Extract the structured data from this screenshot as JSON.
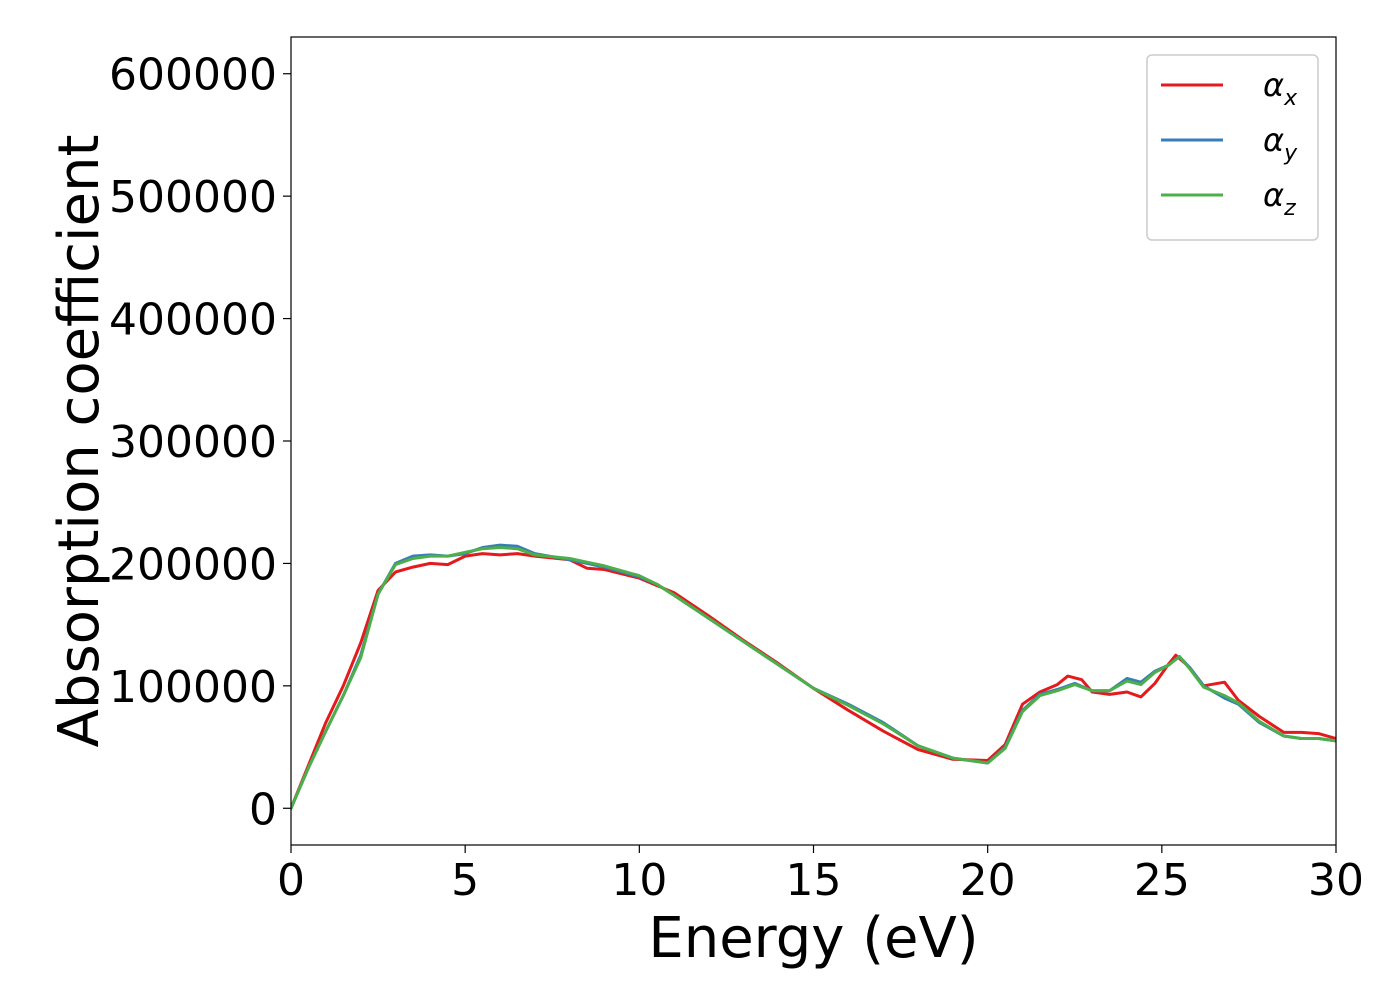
{
  "chart_data": {
    "type": "line",
    "title": "",
    "xlabel": "Energy (eV)",
    "ylabel": "Absorption coefficient",
    "xlim": [
      0,
      30
    ],
    "ylim": [
      -30000,
      630000
    ],
    "x_ticks": [
      "0",
      "5",
      "10",
      "15",
      "20",
      "25",
      "30"
    ],
    "y_ticks": [
      "0",
      "100000",
      "200000",
      "300000",
      "400000",
      "500000",
      "600000"
    ],
    "grid": false,
    "legend_position": "top-right",
    "series": [
      {
        "name": "αx",
        "symbol": "α",
        "subscript": "x",
        "color": "#e41a1c",
        "points": [
          [
            0,
            0
          ],
          [
            0.5,
            35000
          ],
          [
            1,
            70000
          ],
          [
            1.5,
            100000
          ],
          [
            2,
            135000
          ],
          [
            2.5,
            178000
          ],
          [
            3,
            193000
          ],
          [
            3.5,
            197000
          ],
          [
            4,
            200000
          ],
          [
            4.5,
            199000
          ],
          [
            5,
            206000
          ],
          [
            5.5,
            208000
          ],
          [
            6,
            207000
          ],
          [
            6.5,
            208000
          ],
          [
            7,
            206000
          ],
          [
            8,
            203000
          ],
          [
            8.5,
            196000
          ],
          [
            9,
            195000
          ],
          [
            10,
            188000
          ],
          [
            10.5,
            182000
          ],
          [
            11,
            176000
          ],
          [
            12,
            157000
          ],
          [
            13,
            137000
          ],
          [
            14,
            118000
          ],
          [
            15,
            98000
          ],
          [
            16,
            80000
          ],
          [
            17,
            63000
          ],
          [
            18,
            48000
          ],
          [
            19,
            40000
          ],
          [
            20,
            39000
          ],
          [
            20.5,
            52000
          ],
          [
            21,
            85000
          ],
          [
            21.5,
            95000
          ],
          [
            22,
            101000
          ],
          [
            22.3,
            108000
          ],
          [
            22.7,
            105000
          ],
          [
            23,
            95000
          ],
          [
            23.5,
            93000
          ],
          [
            24,
            95000
          ],
          [
            24.4,
            91000
          ],
          [
            24.8,
            102000
          ],
          [
            25.2,
            118000
          ],
          [
            25.4,
            125000
          ],
          [
            25.8,
            115000
          ],
          [
            26.2,
            100000
          ],
          [
            26.8,
            103000
          ],
          [
            27.2,
            88000
          ],
          [
            27.8,
            75000
          ],
          [
            28.5,
            62000
          ],
          [
            29,
            62000
          ],
          [
            29.5,
            61000
          ],
          [
            30,
            57000
          ]
        ]
      },
      {
        "name": "αy",
        "symbol": "α",
        "subscript": "y",
        "color": "#377eb8",
        "points": [
          [
            0,
            0
          ],
          [
            0.5,
            33000
          ],
          [
            1,
            63000
          ],
          [
            1.5,
            92000
          ],
          [
            2,
            125000
          ],
          [
            2.5,
            175000
          ],
          [
            3,
            200000
          ],
          [
            3.5,
            206000
          ],
          [
            4,
            207000
          ],
          [
            4.5,
            206000
          ],
          [
            5,
            208000
          ],
          [
            5.5,
            213000
          ],
          [
            6,
            215000
          ],
          [
            6.5,
            214000
          ],
          [
            7,
            208000
          ],
          [
            8,
            203000
          ],
          [
            8.5,
            200000
          ],
          [
            9,
            197000
          ],
          [
            10,
            189000
          ],
          [
            10.5,
            183000
          ],
          [
            11,
            174000
          ],
          [
            12,
            155000
          ],
          [
            13,
            136000
          ],
          [
            14,
            117000
          ],
          [
            15,
            98000
          ],
          [
            16,
            85000
          ],
          [
            17,
            70000
          ],
          [
            18,
            51000
          ],
          [
            19,
            41000
          ],
          [
            20,
            37000
          ],
          [
            20.5,
            50000
          ],
          [
            21,
            80000
          ],
          [
            21.5,
            93000
          ],
          [
            22,
            97000
          ],
          [
            22.5,
            102000
          ],
          [
            23,
            96000
          ],
          [
            23.5,
            96000
          ],
          [
            24,
            106000
          ],
          [
            24.4,
            103000
          ],
          [
            24.8,
            112000
          ],
          [
            25.2,
            117000
          ],
          [
            25.5,
            124000
          ],
          [
            25.8,
            115000
          ],
          [
            26.2,
            100000
          ],
          [
            26.8,
            90000
          ],
          [
            27.2,
            85000
          ],
          [
            27.8,
            70000
          ],
          [
            28.5,
            59000
          ],
          [
            29,
            57000
          ],
          [
            29.5,
            57000
          ],
          [
            30,
            55000
          ]
        ]
      },
      {
        "name": "αz",
        "symbol": "α",
        "subscript": "z",
        "color": "#4daf4a",
        "points": [
          [
            0,
            0
          ],
          [
            0.5,
            33000
          ],
          [
            1,
            63000
          ],
          [
            1.5,
            92000
          ],
          [
            2,
            123000
          ],
          [
            2.5,
            175000
          ],
          [
            3,
            199000
          ],
          [
            3.5,
            204000
          ],
          [
            4,
            206000
          ],
          [
            4.5,
            206000
          ],
          [
            5,
            209000
          ],
          [
            5.5,
            212000
          ],
          [
            6,
            213000
          ],
          [
            6.5,
            212000
          ],
          [
            7,
            207000
          ],
          [
            8,
            204000
          ],
          [
            8.5,
            201000
          ],
          [
            9,
            198000
          ],
          [
            10,
            190000
          ],
          [
            10.5,
            183000
          ],
          [
            11,
            174000
          ],
          [
            12,
            155000
          ],
          [
            13,
            136000
          ],
          [
            14,
            117000
          ],
          [
            15,
            98000
          ],
          [
            16,
            84000
          ],
          [
            17,
            69000
          ],
          [
            18,
            51000
          ],
          [
            19,
            41000
          ],
          [
            20,
            37000
          ],
          [
            20.5,
            49000
          ],
          [
            21,
            79000
          ],
          [
            21.5,
            92000
          ],
          [
            22,
            96000
          ],
          [
            22.5,
            101000
          ],
          [
            23,
            96000
          ],
          [
            23.5,
            96000
          ],
          [
            24,
            104000
          ],
          [
            24.4,
            101000
          ],
          [
            24.8,
            111000
          ],
          [
            25.2,
            117000
          ],
          [
            25.5,
            124000
          ],
          [
            25.8,
            114000
          ],
          [
            26.2,
            99000
          ],
          [
            26.8,
            92000
          ],
          [
            27.2,
            86000
          ],
          [
            27.8,
            71000
          ],
          [
            28.5,
            59000
          ],
          [
            29,
            57000
          ],
          [
            29.5,
            57000
          ],
          [
            30,
            55000
          ]
        ]
      }
    ]
  }
}
